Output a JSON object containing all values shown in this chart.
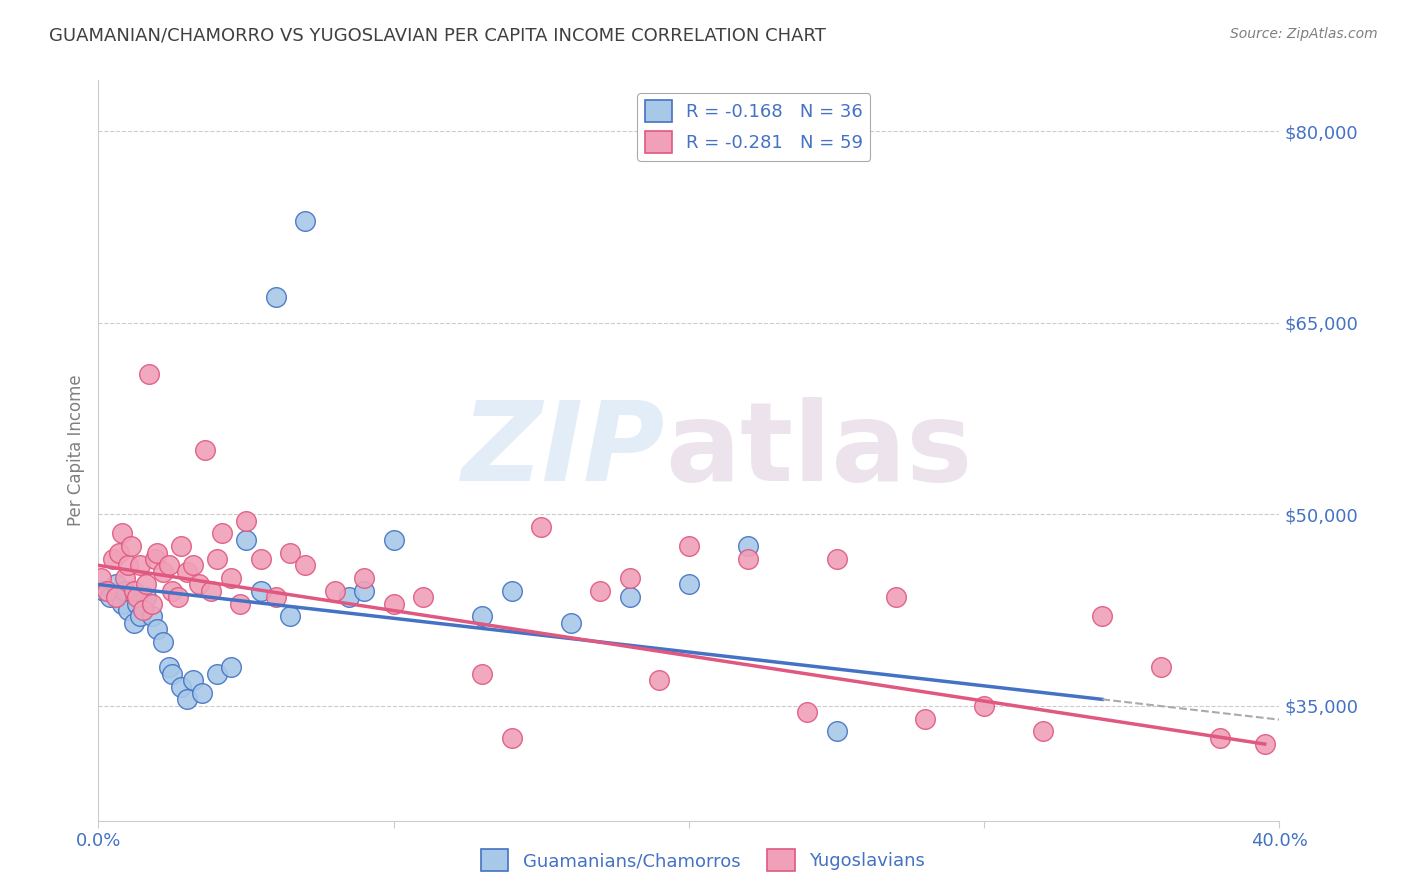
{
  "title": "GUAMANIAN/CHAMORRO VS YUGOSLAVIAN PER CAPITA INCOME CORRELATION CHART",
  "source": "Source: ZipAtlas.com",
  "ylabel": "Per Capita Income",
  "legend_label_blue": "Guamanians/Chamorros",
  "legend_label_pink": "Yugoslavians",
  "R_blue": -0.168,
  "N_blue": 36,
  "R_pink": -0.281,
  "N_pink": 59,
  "color_blue": "#a8c8e8",
  "color_pink": "#f0a0b8",
  "color_blue_line": "#4472c4",
  "color_pink_line": "#e05880",
  "color_axis_labels": "#4472c4",
  "background_color": "#ffffff",
  "xlim": [
    0.0,
    0.4
  ],
  "ylim": [
    26000,
    84000
  ],
  "yticks": [
    35000,
    50000,
    65000,
    80000
  ],
  "ytick_labels": [
    "$35,000",
    "$50,000",
    "$65,000",
    "$80,000"
  ],
  "xticks": [
    0.0,
    0.1,
    0.2,
    0.3,
    0.4
  ],
  "blue_scatter_x": [
    0.002,
    0.004,
    0.006,
    0.008,
    0.009,
    0.01,
    0.012,
    0.013,
    0.014,
    0.016,
    0.018,
    0.02,
    0.022,
    0.024,
    0.025,
    0.028,
    0.03,
    0.032,
    0.035,
    0.04,
    0.045,
    0.05,
    0.055,
    0.06,
    0.065,
    0.07,
    0.085,
    0.09,
    0.1,
    0.13,
    0.14,
    0.16,
    0.18,
    0.2,
    0.22,
    0.25
  ],
  "blue_scatter_y": [
    44000,
    43500,
    44500,
    43000,
    44000,
    42500,
    41500,
    43000,
    42000,
    43500,
    42000,
    41000,
    40000,
    38000,
    37500,
    36500,
    35500,
    37000,
    36000,
    37500,
    38000,
    48000,
    44000,
    67000,
    42000,
    73000,
    43500,
    44000,
    48000,
    42000,
    44000,
    41500,
    43500,
    44500,
    47500,
    33000
  ],
  "pink_scatter_x": [
    0.001,
    0.003,
    0.005,
    0.006,
    0.007,
    0.008,
    0.009,
    0.01,
    0.011,
    0.012,
    0.013,
    0.014,
    0.015,
    0.016,
    0.017,
    0.018,
    0.019,
    0.02,
    0.022,
    0.024,
    0.025,
    0.027,
    0.028,
    0.03,
    0.032,
    0.034,
    0.036,
    0.038,
    0.04,
    0.042,
    0.045,
    0.048,
    0.05,
    0.055,
    0.06,
    0.065,
    0.07,
    0.08,
    0.09,
    0.1,
    0.11,
    0.13,
    0.14,
    0.15,
    0.17,
    0.18,
    0.19,
    0.2,
    0.22,
    0.24,
    0.25,
    0.27,
    0.28,
    0.3,
    0.32,
    0.34,
    0.36,
    0.38,
    0.395
  ],
  "pink_scatter_y": [
    45000,
    44000,
    46500,
    43500,
    47000,
    48500,
    45000,
    46000,
    47500,
    44000,
    43500,
    46000,
    42500,
    44500,
    61000,
    43000,
    46500,
    47000,
    45500,
    46000,
    44000,
    43500,
    47500,
    45500,
    46000,
    44500,
    55000,
    44000,
    46500,
    48500,
    45000,
    43000,
    49500,
    46500,
    43500,
    47000,
    46000,
    44000,
    45000,
    43000,
    43500,
    37500,
    32500,
    49000,
    44000,
    45000,
    37000,
    47500,
    46500,
    34500,
    46500,
    43500,
    34000,
    35000,
    33000,
    42000,
    38000,
    32500,
    32000
  ]
}
